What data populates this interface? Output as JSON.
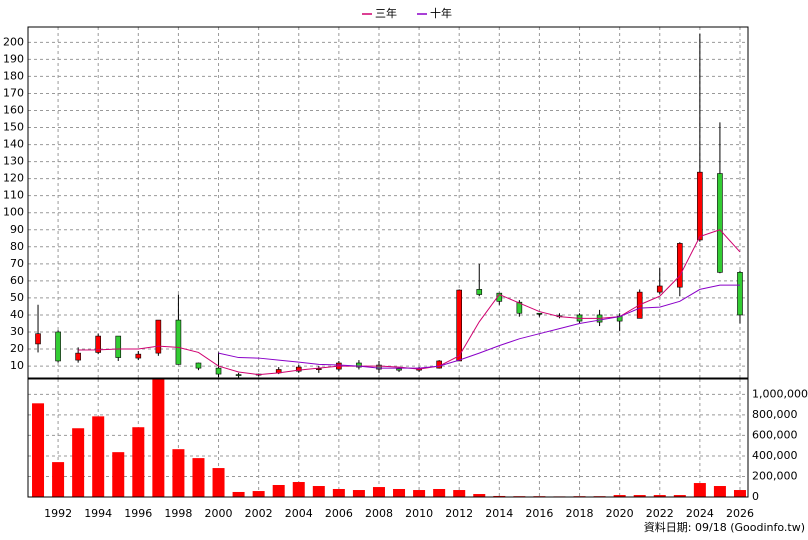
{
  "chart_data": [
    {
      "type": "candlestick",
      "x": [
        1991,
        1992,
        1993,
        1994,
        1995,
        1996,
        1997,
        1998,
        1999,
        2000,
        2001,
        2002,
        2003,
        2004,
        2005,
        2006,
        2007,
        2008,
        2009,
        2010,
        2011,
        2012,
        2013,
        2014,
        2015,
        2016,
        2017,
        2018,
        2019,
        2020,
        2021,
        2022,
        2023,
        2024,
        2025,
        2026
      ],
      "open": [
        23,
        30,
        13.5,
        18,
        27.6,
        14.7,
        17.6,
        37,
        11.8,
        8.8,
        5,
        5,
        6,
        7,
        8,
        8.2,
        11.8,
        10.6,
        8.5,
        7.6,
        8.8,
        13,
        55,
        52.8,
        47.5,
        41,
        39.5,
        40,
        40,
        39.3,
        38,
        53.4,
        56.3,
        84,
        123,
        65
      ],
      "high": [
        46,
        31,
        21,
        29,
        27.6,
        18.8,
        37,
        52,
        12,
        18,
        6,
        5.6,
        9.4,
        10.6,
        10,
        13,
        13.5,
        13,
        9.5,
        9.5,
        13.5,
        55,
        70,
        53,
        48.7,
        41,
        41,
        41,
        43,
        41,
        55,
        67.5,
        82.7,
        205,
        153,
        66
      ],
      "low": [
        18,
        12,
        12,
        17,
        13,
        13.5,
        16,
        11,
        7.6,
        3.5,
        3,
        4,
        5.3,
        6,
        6,
        7,
        8,
        6,
        6.5,
        6.5,
        8.5,
        13,
        51,
        46,
        39,
        39,
        38,
        35,
        33.5,
        30.5,
        38,
        52,
        51,
        83,
        64.5,
        35
      ],
      "close": [
        29,
        13,
        17.6,
        27.6,
        15,
        17,
        37,
        11,
        8.8,
        5.3,
        4.5,
        5.3,
        8,
        9.4,
        8.5,
        11.8,
        9.4,
        8.2,
        7.6,
        8.8,
        13,
        54.6,
        52,
        48,
        41,
        40.5,
        39.3,
        36.4,
        35.8,
        36.4,
        53.4,
        57,
        82,
        123.8,
        65,
        40
      ],
      "up_color": "#ff0000",
      "down_color": "#33cc33",
      "series": [
        {
          "name": "三年",
          "color": "#d0006f",
          "values": [
            null,
            null,
            19.4,
            19.5,
            20,
            20,
            21.7,
            21,
            18,
            10,
            6.5,
            5,
            6,
            7.6,
            8.8,
            10,
            10,
            10,
            9.4,
            8.2,
            10,
            16,
            36,
            52,
            47,
            42,
            39,
            38,
            38,
            39,
            46,
            51,
            63,
            86,
            90,
            77
          ]
        },
        {
          "name": "十年",
          "color": "#8a00c8",
          "values": [
            null,
            null,
            null,
            null,
            null,
            null,
            null,
            null,
            null,
            17.6,
            15,
            14.7,
            13.5,
            12.3,
            11,
            10.6,
            10,
            8.8,
            8.8,
            8.8,
            10,
            13.5,
            17.6,
            22,
            26,
            29,
            32,
            35,
            37,
            39,
            44,
            44.6,
            48,
            55,
            57.5,
            57.5
          ]
        }
      ],
      "xlim": [
        1990.5,
        2026.4
      ],
      "ylim": [
        3,
        209
      ],
      "yticks": [
        10,
        20,
        30,
        40,
        50,
        60,
        70,
        80,
        90,
        100,
        110,
        120,
        130,
        140,
        150,
        160,
        170,
        180,
        190,
        200
      ],
      "grid": true
    },
    {
      "type": "bar",
      "x": [
        1991,
        1992,
        1993,
        1994,
        1995,
        1996,
        1997,
        1998,
        1999,
        2000,
        2001,
        2002,
        2003,
        2004,
        2005,
        2006,
        2007,
        2008,
        2009,
        2010,
        2011,
        2012,
        2013,
        2014,
        2015,
        2016,
        2017,
        2018,
        2019,
        2020,
        2021,
        2022,
        2023,
        2024,
        2025,
        2026
      ],
      "values": [
        913000,
        340000,
        670000,
        786000,
        437000,
        680000,
        1146000,
        466000,
        379000,
        282000,
        49000,
        58000,
        117000,
        146000,
        107000,
        78000,
        68000,
        97000,
        78000,
        68000,
        78000,
        68000,
        29000,
        10000,
        8000,
        8000,
        6000,
        8000,
        8000,
        19000,
        19000,
        19000,
        19000,
        136000,
        107000,
        68000
      ],
      "color": "#ff0000",
      "xlim": [
        1990.5,
        2026.4
      ],
      "ylim": [
        0,
        1150000
      ],
      "xticks": [
        1992,
        1994,
        1996,
        1998,
        2000,
        2002,
        2004,
        2006,
        2008,
        2010,
        2012,
        2014,
        2016,
        2018,
        2020,
        2022,
        2024,
        2026
      ],
      "yticks": [
        0,
        {
          "value": 200000,
          "label": "200,000"
        },
        {
          "value": 400000,
          "label": "400,000"
        },
        {
          "value": 600000,
          "label": "600,000"
        },
        {
          "value": 800000,
          "label": "800,000"
        },
        {
          "value": 1000000,
          "label": "1,000,000"
        }
      ],
      "y_axis_side": "right",
      "grid": true
    }
  ],
  "footer": "資料日期: 09/18 (Goodinfo.tw)"
}
